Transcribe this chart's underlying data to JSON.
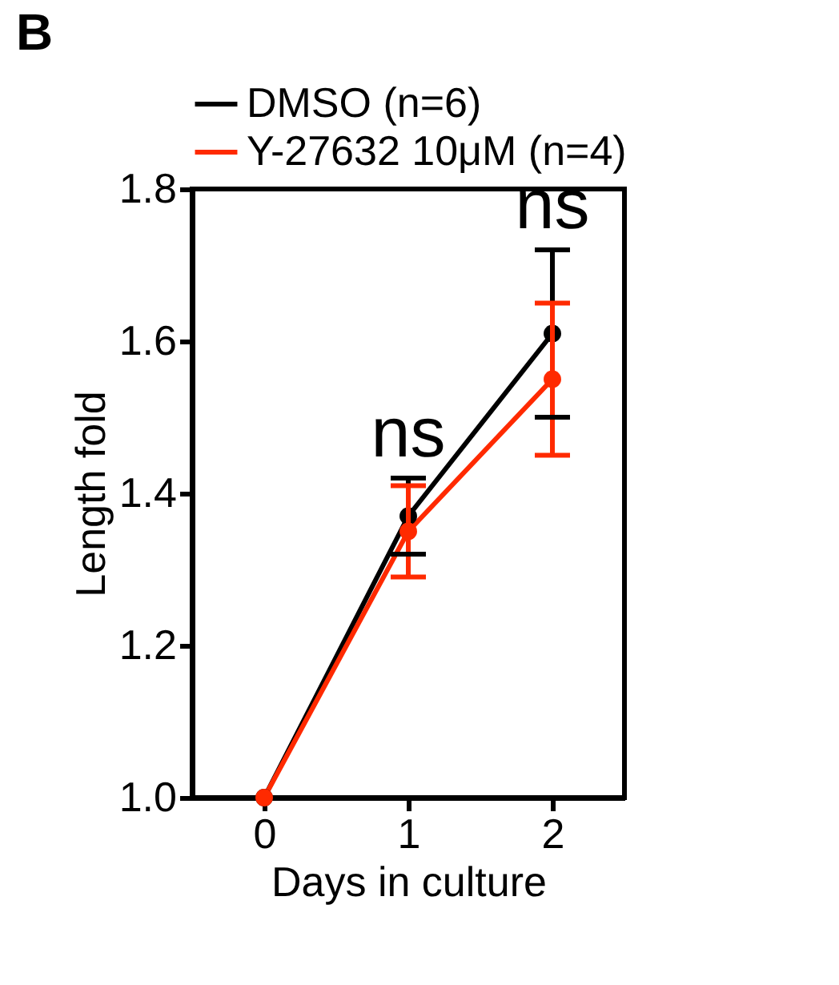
{
  "chart_data": {
    "type": "line",
    "title": "B",
    "xlabel": "Days in culture",
    "ylabel": "Length fold",
    "x": [
      0,
      1,
      2
    ],
    "xlim": [
      -0.5,
      2.5
    ],
    "xticks": [
      {
        "value": 0,
        "label": "0"
      },
      {
        "value": 1,
        "label": "1"
      },
      {
        "value": 2,
        "label": "2"
      }
    ],
    "ylim": [
      1.0,
      1.8
    ],
    "yticks": [
      {
        "value": 1.0,
        "label": "1.0"
      },
      {
        "value": 1.2,
        "label": "1.2"
      },
      {
        "value": 1.4,
        "label": "1.4"
      },
      {
        "value": 1.6,
        "label": "1.6"
      },
      {
        "value": 1.8,
        "label": "1.8"
      }
    ],
    "series": [
      {
        "name": "DMSO (n=6)",
        "color": "#000000",
        "values": [
          1.0,
          1.37,
          1.61
        ],
        "errors": [
          null,
          0.05,
          0.11
        ]
      },
      {
        "name": "Y-27632 10μM (n=4)",
        "color": "#ff2a00",
        "values": [
          1.0,
          1.35,
          1.55
        ],
        "errors": [
          null,
          0.06,
          0.1
        ]
      }
    ],
    "annotations": [
      {
        "text": "ns",
        "x": 1,
        "y": 1.43
      },
      {
        "text": "ns",
        "x": 2,
        "y": 1.73
      }
    ],
    "marker": "circle",
    "line_style": "solid",
    "legend": "top",
    "grid": false
  }
}
